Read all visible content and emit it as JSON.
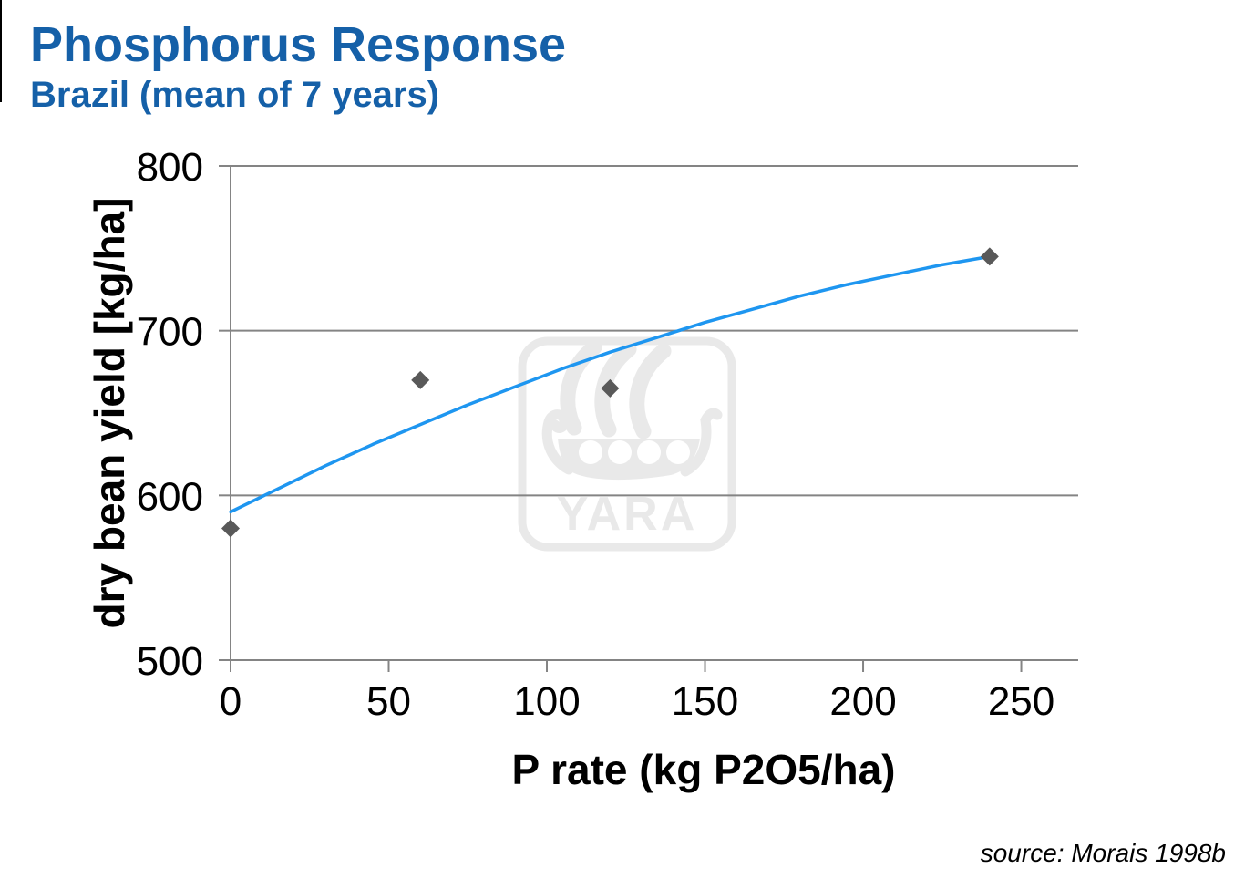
{
  "header": {
    "title": "Phosphorus Response",
    "subtitle": "Brazil (mean of 7 years)"
  },
  "watermark": {
    "brand": "YARA"
  },
  "source": {
    "label": "source: Morais 1998b"
  },
  "colors": {
    "title_blue": "#1560A8",
    "axis_gray": "#848484",
    "text_black": "#000000",
    "point_gray": "#595959",
    "trendline_blue": "#1E96F0",
    "watermark_gray": "#E9E9E9"
  },
  "chart_data": {
    "type": "scatter",
    "title": "Phosphorus Response — Brazil (mean of 7 years)",
    "xlabel": "P rate (kg P2O5/ha)",
    "ylabel": "dry bean yield [kg/ha]",
    "grid": "horizontal",
    "legend": "none",
    "x_axis": {
      "ticks": [
        0,
        50,
        100,
        150,
        200,
        250
      ],
      "range": [
        0,
        268
      ]
    },
    "y_axis": {
      "ticks": [
        500,
        600,
        700,
        800
      ],
      "range": [
        500,
        800
      ]
    },
    "series": [
      {
        "name": "dry bean yield",
        "marker": "diamond",
        "points": [
          [
            0,
            580
          ],
          [
            60,
            670
          ],
          [
            120,
            665
          ],
          [
            240,
            745
          ]
        ]
      }
    ],
    "trendline": {
      "type": "smooth",
      "points": [
        [
          0,
          590
        ],
        [
          15,
          604
        ],
        [
          30,
          618
        ],
        [
          45,
          631
        ],
        [
          60,
          643
        ],
        [
          75,
          655
        ],
        [
          90,
          666
        ],
        [
          105,
          677
        ],
        [
          120,
          687
        ],
        [
          135,
          696
        ],
        [
          150,
          705
        ],
        [
          165,
          713
        ],
        [
          180,
          721
        ],
        [
          195,
          728
        ],
        [
          210,
          734
        ],
        [
          225,
          740
        ],
        [
          240,
          745
        ]
      ]
    }
  }
}
